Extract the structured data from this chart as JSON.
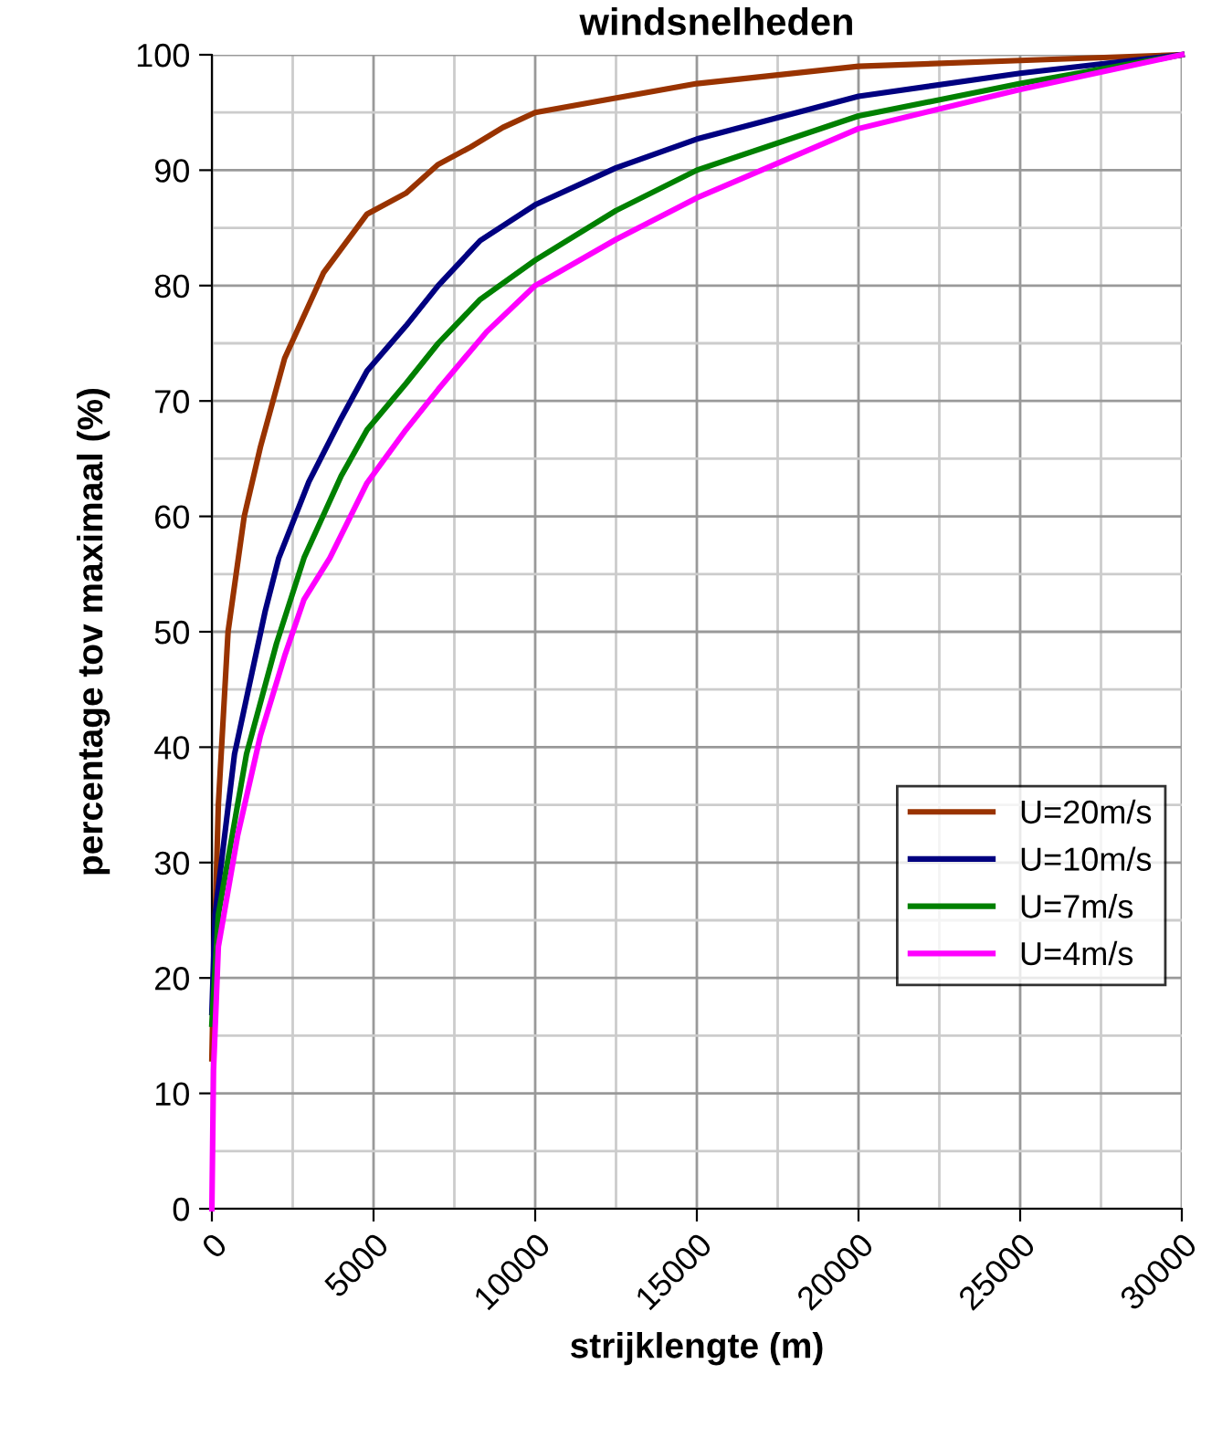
{
  "chart_data": {
    "type": "line",
    "title": "windsnelheden",
    "xlabel": "strijklengte (m)",
    "ylabel": "percentage tov maximaal (%)",
    "xlim": [
      0,
      30000
    ],
    "xticks": [
      0,
      5000,
      10000,
      15000,
      20000,
      25000,
      30000
    ],
    "ylim": [
      0,
      100
    ],
    "yticks": [
      0,
      10,
      20,
      30,
      40,
      50,
      60,
      70,
      80,
      90,
      100
    ],
    "grid": true,
    "legend": "right",
    "marker": "none",
    "line_style": "solid",
    "series": [
      {
        "name": "U=20m/s",
        "color": "#993300",
        "x": [
          0,
          50,
          200,
          500,
          1000,
          1500,
          2250,
          3450,
          4800,
          6000,
          7000,
          8000,
          9000,
          10000,
          12000,
          15000,
          20000,
          25000,
          30000
        ],
        "values": [
          13,
          20,
          35,
          50,
          60,
          66,
          73.7,
          81.1,
          86.2,
          88,
          90.5,
          92,
          93.7,
          95,
          96,
          97.5,
          99,
          99.5,
          100
        ]
      },
      {
        "name": "U=10m/s",
        "color": "#000080",
        "x": [
          0,
          100,
          700,
          1650,
          2070,
          3000,
          4000,
          4800,
          6000,
          7000,
          8300,
          10000,
          12500,
          15000,
          20000,
          25000,
          30000
        ],
        "values": [
          17,
          25.5,
          39.4,
          51.8,
          56.4,
          63,
          68.5,
          72.6,
          76.5,
          80,
          83.9,
          87,
          90.2,
          92.7,
          96.4,
          98.4,
          100
        ]
      },
      {
        "name": "U=7m/s",
        "color": "#008000",
        "x": [
          0,
          200,
          1070,
          2000,
          2850,
          4000,
          4800,
          6000,
          7000,
          8300,
          10000,
          12500,
          15000,
          20000,
          25000,
          30000
        ],
        "values": [
          16,
          25.5,
          39.4,
          49,
          56.4,
          63.5,
          67.5,
          71.5,
          75,
          78.8,
          82.2,
          86.5,
          90,
          94.7,
          97.5,
          100
        ]
      },
      {
        "name": "U=4m/s",
        "color": "#ff00ff",
        "x": [
          0,
          50,
          200,
          800,
          1500,
          2250,
          2850,
          3650,
          4800,
          6000,
          7000,
          8500,
          10000,
          12500,
          15000,
          20000,
          25000,
          30000
        ],
        "values": [
          0,
          12,
          22.7,
          32.4,
          41,
          47.9,
          52.8,
          56.4,
          62.9,
          67.5,
          71,
          76,
          80,
          84,
          87.6,
          93.6,
          97,
          100
        ]
      }
    ]
  }
}
